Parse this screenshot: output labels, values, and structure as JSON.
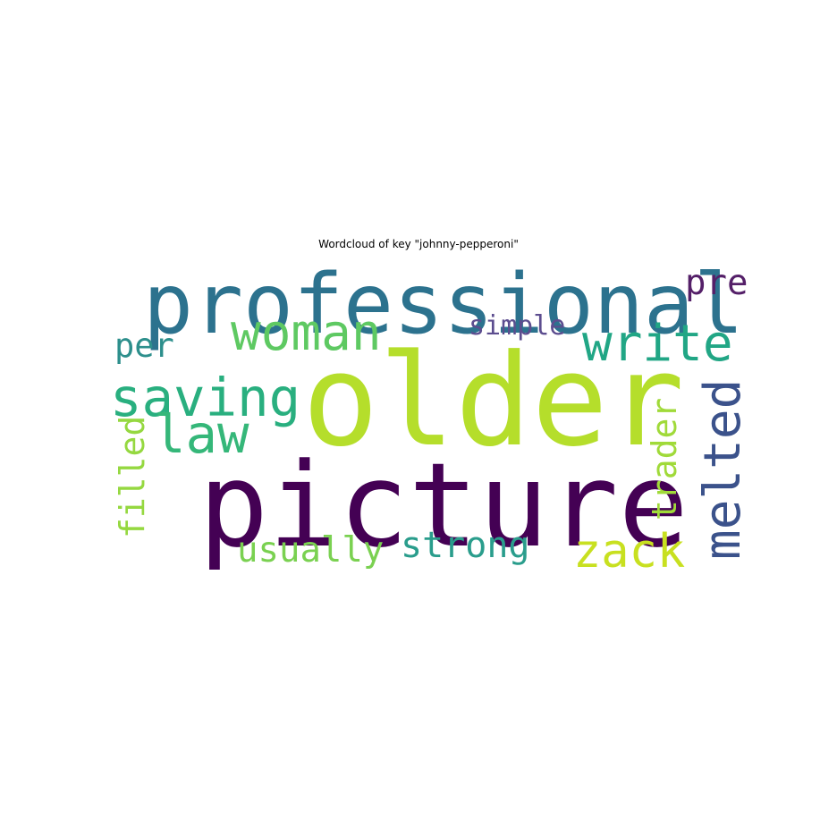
{
  "chart_data": {
    "type": "wordcloud",
    "title": "Wordcloud of key \"johnny-pepperoni\"",
    "background": "#ffffff",
    "words": [
      {
        "text": "older",
        "color": "#b5de2b",
        "orientation": "horizontal"
      },
      {
        "text": "picture",
        "color": "#440154",
        "orientation": "horizontal"
      },
      {
        "text": "professional",
        "color": "#2c728e",
        "orientation": "horizontal"
      },
      {
        "text": "woman",
        "color": "#5ec962",
        "orientation": "horizontal"
      },
      {
        "text": "write",
        "color": "#21a685",
        "orientation": "horizontal"
      },
      {
        "text": "saving",
        "color": "#29af7f",
        "orientation": "horizontal"
      },
      {
        "text": "law",
        "color": "#35b779",
        "orientation": "horizontal"
      },
      {
        "text": "melted",
        "color": "#3b528b",
        "orientation": "vertical"
      },
      {
        "text": "zack",
        "color": "#c8e020",
        "orientation": "horizontal"
      },
      {
        "text": "strong",
        "color": "#2a9d8c",
        "orientation": "horizontal"
      },
      {
        "text": "usually",
        "color": "#7ad151",
        "orientation": "horizontal"
      },
      {
        "text": "filled",
        "color": "#95d840",
        "orientation": "vertical"
      },
      {
        "text": "trader",
        "color": "#a0da39",
        "orientation": "vertical"
      },
      {
        "text": "pre",
        "color": "#541f68",
        "orientation": "horizontal"
      },
      {
        "text": "per",
        "color": "#2d8f8c",
        "orientation": "horizontal"
      },
      {
        "text": "simple",
        "color": "#5c4d8f",
        "orientation": "horizontal"
      }
    ]
  }
}
